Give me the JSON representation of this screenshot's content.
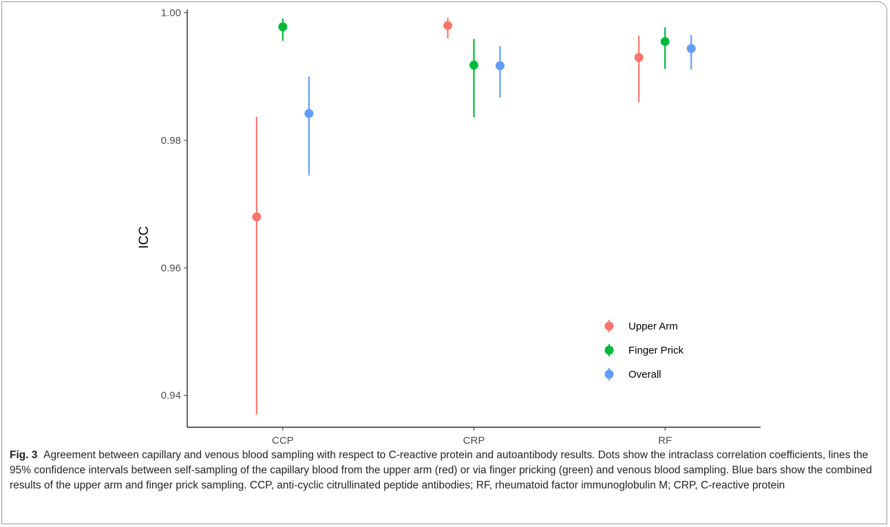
{
  "chart_data": {
    "type": "scatter",
    "ylabel": "ICC",
    "xlabel": "",
    "categories": [
      "CCP",
      "CRP",
      "RF"
    ],
    "ylim": [
      0.935,
      1.0005
    ],
    "yticks": [
      "0.94",
      "0.96",
      "0.98",
      "1.00"
    ],
    "ytick_values": [
      0.94,
      0.96,
      0.98,
      1.0
    ],
    "grid": false,
    "legend_position": "bottom-right",
    "series": [
      {
        "name": "Upper Arm",
        "color": "#F8766D",
        "values": [
          0.968,
          0.998,
          0.993
        ],
        "lower": [
          0.937,
          0.996,
          0.986
        ],
        "upper": [
          0.9837,
          0.9992,
          0.9964
        ]
      },
      {
        "name": "Finger Prick",
        "color": "#00BA38",
        "values": [
          0.9978,
          0.9918,
          0.9955
        ],
        "lower": [
          0.9956,
          0.9836,
          0.9912
        ],
        "upper": [
          0.9991,
          0.9959,
          0.9977
        ]
      },
      {
        "name": "Overall",
        "color": "#619CFF",
        "values": [
          0.9842,
          0.9917,
          0.9944
        ],
        "lower": [
          0.9745,
          0.9867,
          0.9911
        ],
        "upper": [
          0.99,
          0.9948,
          0.9965
        ]
      }
    ]
  },
  "caption": {
    "label": "Fig. 3",
    "text": "Agreement between capillary and venous blood sampling with respect to C-reactive protein and autoantibody results. Dots show the intraclass correlation coefficients, lines the 95% confidence intervals between self-sampling of the capillary blood from the upper arm (red) or via finger pricking (green) and venous blood sampling. Blue bars show the combined results of the upper arm and finger prick sampling. CCP, anti-cyclic citrullinated peptide antibodies; RF, rheumatoid factor immunoglobulin M; CRP, C-reactive protein"
  }
}
